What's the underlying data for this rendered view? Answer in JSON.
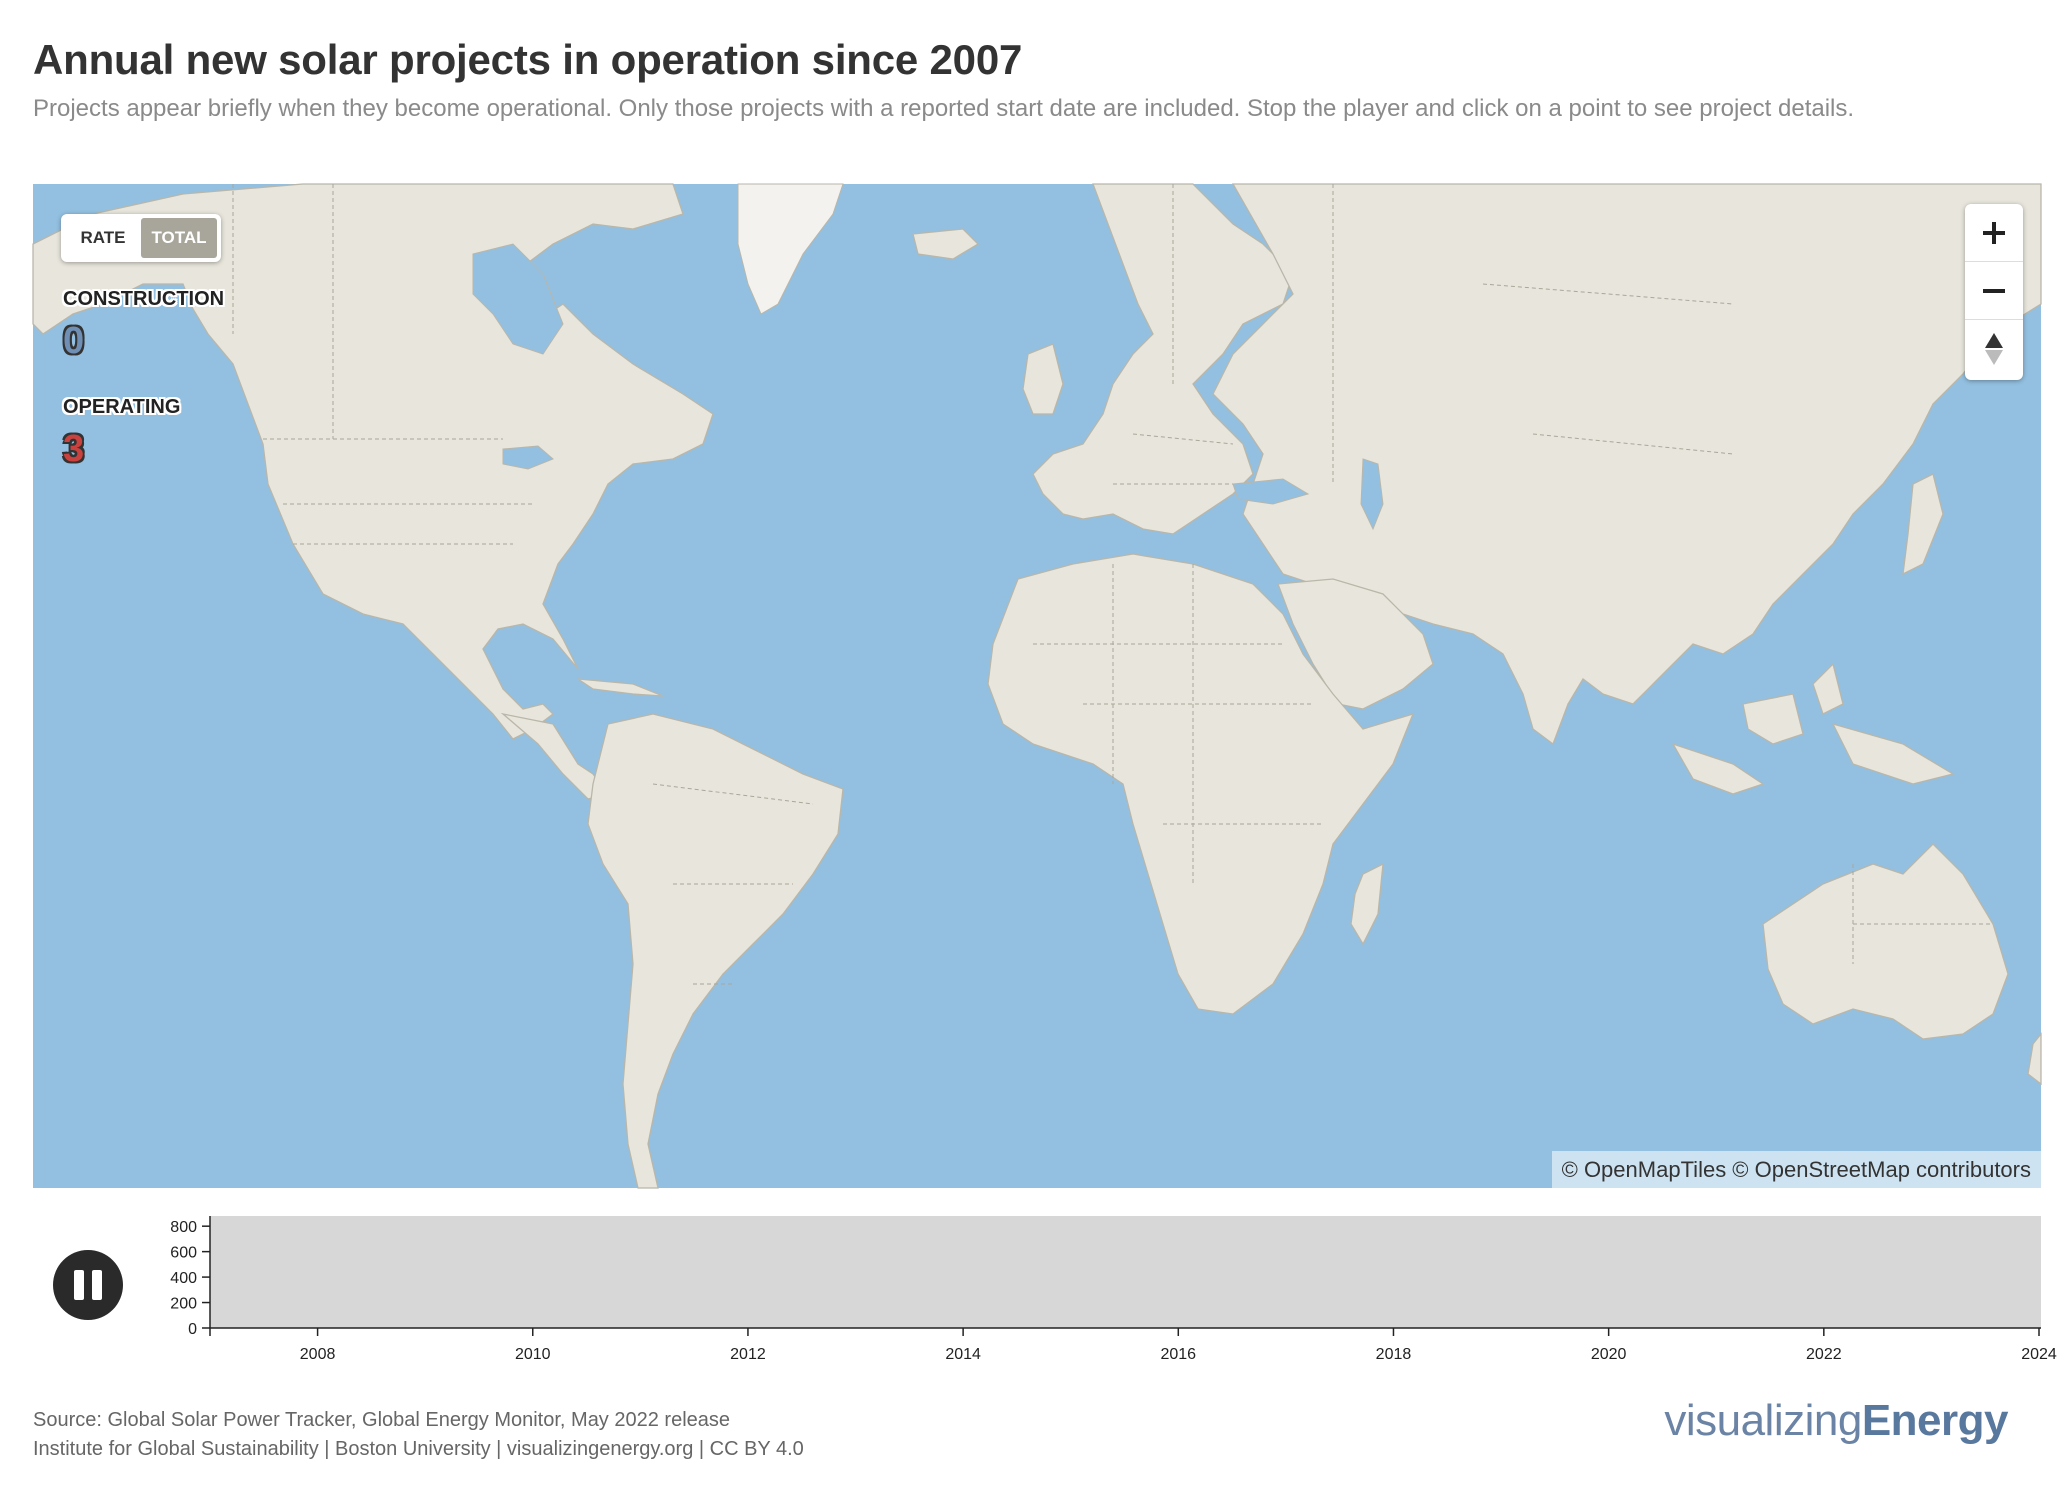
{
  "title": "Annual new solar projects in operation since 2007",
  "subtitle": "Projects appear briefly when they become operational. Only those projects with a reported start date are included. Stop the player and click on a point to see project details.",
  "map": {
    "toggle": {
      "options": [
        "RATE",
        "TOTAL"
      ],
      "selected": "TOTAL"
    },
    "stats": {
      "construction": {
        "label": "CONSTRUCTION",
        "value": "0"
      },
      "operating": {
        "label": "OPERATING",
        "value": "3"
      }
    },
    "zoom_controls": {
      "zoom_in_icon": "plus-icon",
      "zoom_out_icon": "minus-icon",
      "reset_icon": "compass-icon"
    },
    "attribution": "© OpenMapTiles © OpenStreetMap contributors",
    "colors": {
      "water": "#93c0e0",
      "land": "#e8e6dc",
      "construction": "#6f8fb5",
      "operating": "#c9423f"
    }
  },
  "timeline": {
    "play_state": "playing",
    "button_icon": "pause-icon",
    "y_ticks": [
      "0",
      "200",
      "400",
      "600",
      "800"
    ],
    "y_range": [
      0,
      880
    ],
    "x_ticks": [
      "2008",
      "2010",
      "2012",
      "2014",
      "2016",
      "2018",
      "2020",
      "2022",
      "2024"
    ],
    "x_range": [
      2007,
      2024
    ]
  },
  "footer": {
    "source": "Source: Global Solar Power Tracker, Global Energy Monitor, May 2022 release",
    "credits": "Institute for Global Sustainability | Boston University | visualizingenergy.org | CC BY 4.0",
    "logo_light": "visualizing",
    "logo_bold": "Energy"
  }
}
